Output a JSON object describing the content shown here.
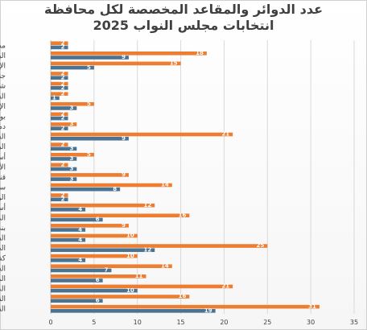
{
  "chart_data": {
    "type": "bar",
    "orientation": "horizontal",
    "title": [
      "عدد الدوائر والمقاعد المخصصة لكل محافظة",
      "انتخابات مجلس النواب 2025"
    ],
    "xlabel": "",
    "ylabel": "",
    "xlim": [
      0,
      35
    ],
    "xticks": [
      0,
      5,
      10,
      15,
      20,
      25,
      30,
      35
    ],
    "grid": true,
    "legend": "none",
    "categories": [
      "مطروح",
      "البحيرة",
      "الإسكندرية",
      "جنوب سيناء",
      "شمال سيناء",
      "السويس",
      "الإسماعيلية",
      "بورسعيد",
      "دمياط",
      "الشرقية",
      "البحر الأحمر",
      "أسوان",
      "الأقصر",
      "قنا",
      "سوهاج",
      "الوادي الجديد",
      "أسيوط",
      "المنيا",
      "بني سويف",
      "الفيوم",
      "الجيزة",
      "كفر الشيخ",
      "الغربية",
      "المنوفية",
      "الدقهلية",
      "القليوبية",
      "القاهرة"
    ],
    "series": [
      {
        "name": "",
        "color": "#ED7D31",
        "values": [
          2,
          18,
          15,
          2,
          2,
          2,
          5,
          2,
          3,
          21,
          2,
          5,
          2,
          9,
          14,
          2,
          12,
          16,
          9,
          10,
          25,
          10,
          14,
          11,
          21,
          16,
          31
        ]
      },
      {
        "name": "",
        "color": "#4A7391",
        "values": [
          2,
          9,
          5,
          2,
          2,
          1,
          3,
          2,
          2,
          9,
          3,
          3,
          3,
          3,
          8,
          2,
          4,
          6,
          4,
          4,
          12,
          4,
          7,
          6,
          10,
          6,
          19
        ]
      }
    ]
  }
}
